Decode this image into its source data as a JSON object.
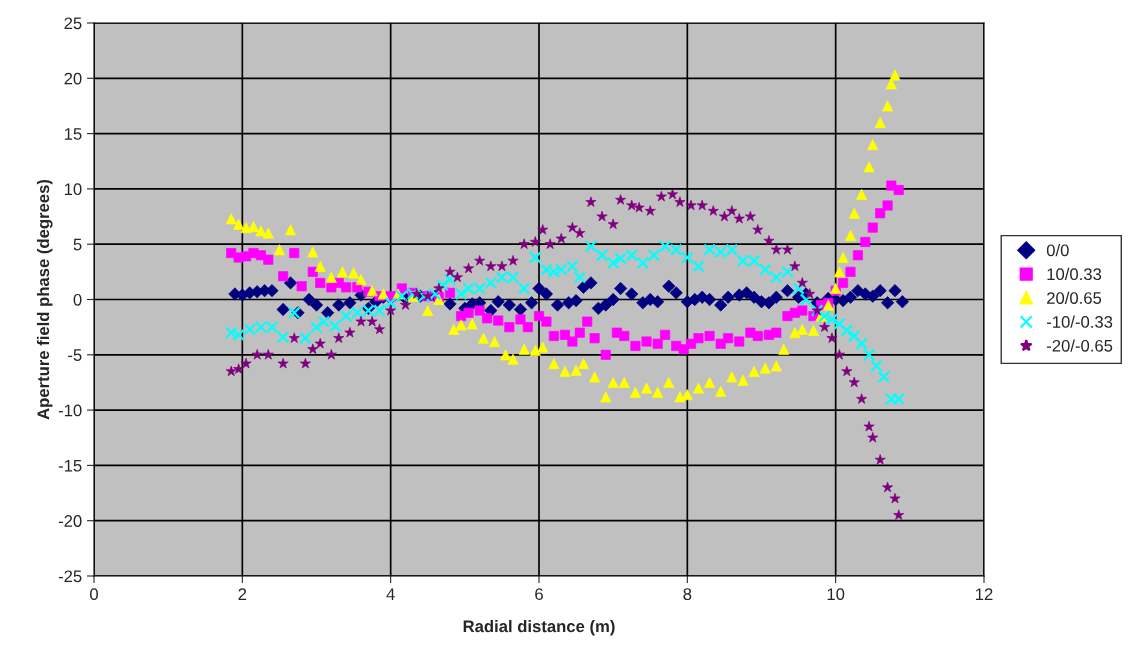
{
  "chart_data": {
    "type": "scatter",
    "xlabel": "Radial distance (m)",
    "ylabel": "Aperture field phase (degrees)",
    "xlim": [
      0,
      12
    ],
    "xticks": [
      0,
      2,
      4,
      6,
      8,
      10,
      12
    ],
    "ylim": [
      -25,
      25
    ],
    "yticks": [
      -25,
      -20,
      -15,
      -10,
      -5,
      0,
      5,
      10,
      15,
      20,
      25
    ],
    "grid": true,
    "legend": "right",
    "series": [
      {
        "name": "0/0",
        "color": "#000080",
        "marker": "diamond",
        "x": [
          1.9,
          2.0,
          2.1,
          2.2,
          2.3,
          2.4,
          2.55,
          2.65,
          2.75,
          2.9,
          3.0,
          3.15,
          3.3,
          3.45,
          3.6,
          3.7,
          3.8,
          3.9,
          4.0,
          4.2,
          4.4,
          4.6,
          4.8,
          5.0,
          5.1,
          5.2,
          5.35,
          5.45,
          5.6,
          5.75,
          5.9,
          6.0,
          6.1,
          6.25,
          6.4,
          6.5,
          6.6,
          6.7,
          6.8,
          6.9,
          7.0,
          7.1,
          7.25,
          7.4,
          7.5,
          7.6,
          7.75,
          7.85,
          8.0,
          8.1,
          8.2,
          8.3,
          8.45,
          8.55,
          8.7,
          8.8,
          8.9,
          9.0,
          9.1,
          9.2,
          9.35,
          9.5,
          9.6,
          9.75,
          9.9,
          10.0,
          10.1,
          10.2,
          10.3,
          10.4,
          10.5,
          10.6,
          10.7,
          10.8,
          10.9
        ],
        "values": [
          0.5,
          0.4,
          0.6,
          0.7,
          0.8,
          0.8,
          -0.9,
          1.5,
          -1.2,
          0,
          -0.5,
          -1.2,
          -0.5,
          -0.3,
          0.4,
          -0.8,
          -0.2,
          0.2,
          0.1,
          0.1,
          0.3,
          0.3,
          -0.4,
          -0.8,
          -0.4,
          -0.3,
          -1,
          -0.2,
          -0.5,
          -0.9,
          -0.3,
          1.0,
          0.5,
          -0.5,
          -0.3,
          -0.1,
          1.1,
          1.5,
          -0.8,
          -0.5,
          0,
          1.0,
          0.5,
          -0.3,
          0,
          -0.2,
          1.2,
          0.6,
          -0.2,
          0,
          0.2,
          0,
          -0.5,
          0.2,
          0.4,
          0.6,
          0.2,
          -0.2,
          -0.3,
          0.2,
          0.8,
          0.2,
          0.5,
          -0.3,
          0.1,
          0,
          -0.1,
          0.2,
          0.8,
          0.5,
          0.3,
          0.8,
          -0.3,
          0.8,
          -0.2
        ]
      },
      {
        "name": "10/0.33",
        "color": "#ff00ff",
        "marker": "square",
        "x": [
          1.85,
          1.95,
          2.05,
          2.15,
          2.25,
          2.35,
          2.55,
          2.7,
          2.8,
          2.95,
          3.05,
          3.2,
          3.3,
          3.4,
          3.55,
          3.7,
          3.85,
          4.0,
          4.15,
          4.3,
          4.5,
          4.65,
          4.8,
          4.95,
          5.05,
          5.2,
          5.3,
          5.45,
          5.6,
          5.75,
          5.85,
          6.0,
          6.1,
          6.2,
          6.35,
          6.45,
          6.55,
          6.65,
          6.75,
          6.9,
          7.05,
          7.15,
          7.3,
          7.45,
          7.6,
          7.7,
          7.85,
          7.95,
          8.05,
          8.15,
          8.3,
          8.45,
          8.55,
          8.7,
          8.85,
          8.95,
          9.1,
          9.2,
          9.35,
          9.45,
          9.55,
          9.7,
          9.8,
          9.9,
          10.0,
          10.1,
          10.2,
          10.3,
          10.4,
          10.5,
          10.6,
          10.7,
          10.75,
          10.85
        ],
        "values": [
          4.2,
          3.8,
          3.9,
          4.2,
          4.0,
          3.6,
          2.1,
          4.2,
          1.2,
          2.5,
          1.5,
          1.1,
          1.5,
          1.1,
          1.1,
          0.7,
          0.3,
          0.3,
          1.0,
          0.6,
          0.3,
          0.2,
          0.6,
          -1.5,
          -1.2,
          -1.0,
          -1.7,
          -1.9,
          -2.5,
          -1.8,
          -2.5,
          -1.5,
          -2.0,
          -3.3,
          -3.2,
          -3.8,
          -3.0,
          -2.0,
          -3.5,
          -5.0,
          -3.0,
          -3.3,
          -4.2,
          -3.8,
          -4.0,
          -3.2,
          -4.2,
          -4.5,
          -4.0,
          -3.5,
          -3.3,
          -4.0,
          -3.5,
          -3.8,
          -3.0,
          -3.3,
          -3.2,
          -3.0,
          -1.5,
          -1.2,
          -1.0,
          -1.5,
          -0.5,
          -0.3,
          0.8,
          1.5,
          2.5,
          4.0,
          5.2,
          6.5,
          7.8,
          8.5,
          10.3,
          9.9
        ]
      },
      {
        "name": "20/0.65",
        "color": "#ffff00",
        "marker": "triangle",
        "x": [
          1.85,
          1.95,
          2.05,
          2.15,
          2.25,
          2.35,
          2.5,
          2.65,
          2.95,
          3.05,
          3.2,
          3.35,
          3.5,
          3.6,
          3.75,
          3.9,
          4.1,
          4.3,
          4.5,
          4.65,
          4.85,
          4.95,
          5.1,
          5.25,
          5.4,
          5.55,
          5.65,
          5.8,
          5.95,
          6.05,
          6.2,
          6.35,
          6.5,
          6.6,
          6.75,
          6.9,
          7.0,
          7.15,
          7.3,
          7.45,
          7.6,
          7.75,
          7.9,
          8.0,
          8.15,
          8.3,
          8.45,
          8.6,
          8.75,
          8.9,
          9.05,
          9.2,
          9.3,
          9.45,
          9.55,
          9.7,
          9.8,
          9.9,
          10.0,
          10.05,
          10.1,
          10.2,
          10.25,
          10.35,
          10.45,
          10.5,
          10.6,
          10.7,
          10.75,
          10.8
        ],
        "values": [
          7.3,
          6.8,
          6.5,
          6.6,
          6.2,
          6.0,
          4.5,
          6.3,
          4.3,
          3.0,
          2.0,
          2.5,
          2.4,
          1.8,
          0.8,
          0.5,
          0.5,
          0.3,
          -1.0,
          0,
          -2.7,
          -2.3,
          -2.2,
          -3.5,
          -3.8,
          -5.0,
          -5.4,
          -4.5,
          -4.6,
          -4.3,
          -5.8,
          -6.5,
          -6.4,
          -5.8,
          -7.0,
          -8.8,
          -7.5,
          -7.5,
          -8.4,
          -8.0,
          -8.4,
          -7.5,
          -8.8,
          -8.6,
          -8.0,
          -7.5,
          -8.3,
          -7.0,
          -7.3,
          -6.5,
          -6.2,
          -6.0,
          -4.5,
          -3.0,
          -2.7,
          -2.8,
          -1.5,
          -0.5,
          1.0,
          2.5,
          3.8,
          5.8,
          7.8,
          9.5,
          12.0,
          14.0,
          16.0,
          17.5,
          19.5,
          20.3
        ]
      },
      {
        "name": "-10/-0.33",
        "color": "#00ffff",
        "marker": "cross",
        "x": [
          1.85,
          1.95,
          2.1,
          2.25,
          2.4,
          2.55,
          2.7,
          2.85,
          3.0,
          3.1,
          3.25,
          3.4,
          3.55,
          3.7,
          3.85,
          4.0,
          4.15,
          4.3,
          4.45,
          4.6,
          4.7,
          4.8,
          4.95,
          5.05,
          5.2,
          5.35,
          5.5,
          5.65,
          5.8,
          5.95,
          6.1,
          6.2,
          6.3,
          6.45,
          6.55,
          6.7,
          6.85,
          7.0,
          7.1,
          7.25,
          7.4,
          7.55,
          7.7,
          7.85,
          8.0,
          8.15,
          8.3,
          8.45,
          8.6,
          8.75,
          8.9,
          9.05,
          9.2,
          9.35,
          9.5,
          9.6,
          9.75,
          9.85,
          9.95,
          10.05,
          10.15,
          10.25,
          10.35,
          10.45,
          10.55,
          10.65,
          10.75,
          10.85
        ],
        "values": [
          -3.0,
          -3.2,
          -2.7,
          -2.5,
          -2.5,
          -3.4,
          -1.2,
          -3.5,
          -2.5,
          -2.0,
          -2.4,
          -1.5,
          -1.2,
          -1.0,
          -1.0,
          -0.3,
          0.3,
          0.5,
          0.3,
          0.5,
          1.3,
          1.8,
          0.5,
          1.0,
          1.0,
          1.5,
          2.0,
          2.0,
          1.0,
          3.8,
          2.7,
          2.5,
          2.7,
          3.0,
          2.0,
          4.8,
          4.0,
          3.3,
          3.7,
          4.0,
          3.3,
          4.0,
          4.8,
          4.5,
          3.8,
          3.0,
          4.5,
          4.3,
          4.5,
          3.5,
          3.5,
          2.7,
          2.0,
          2.5,
          1.0,
          0,
          -1.0,
          -1.5,
          -1.8,
          -2.2,
          -2.8,
          -3.3,
          -4.0,
          -5.0,
          -6.0,
          -7.0,
          -9.0,
          -9.0
        ]
      },
      {
        "name": "-20/-0.65",
        "color": "#800080",
        "marker": "star",
        "x": [
          1.85,
          1.95,
          2.05,
          2.2,
          2.35,
          2.55,
          2.7,
          2.85,
          2.95,
          3.05,
          3.2,
          3.3,
          3.45,
          3.6,
          3.75,
          3.85,
          4.0,
          4.2,
          4.35,
          4.5,
          4.65,
          4.8,
          4.9,
          5.05,
          5.2,
          5.35,
          5.5,
          5.65,
          5.8,
          5.95,
          6.05,
          6.15,
          6.3,
          6.45,
          6.55,
          6.7,
          6.85,
          7.0,
          7.1,
          7.25,
          7.35,
          7.5,
          7.65,
          7.8,
          7.9,
          8.05,
          8.2,
          8.35,
          8.5,
          8.6,
          8.7,
          8.85,
          8.95,
          9.1,
          9.2,
          9.35,
          9.45,
          9.55,
          9.65,
          9.75,
          9.85,
          9.95,
          10.05,
          10.15,
          10.25,
          10.35,
          10.45,
          10.5,
          10.6,
          10.7,
          10.8,
          10.85
        ],
        "values": [
          -6.5,
          -6.3,
          -5.8,
          -5.0,
          -5.0,
          -5.8,
          -3.5,
          -5.8,
          -4.5,
          -4.0,
          -5.0,
          -3.5,
          -3.0,
          -2.0,
          -2.0,
          -2.7,
          -1.0,
          -0.5,
          0.5,
          0.3,
          1.0,
          2.5,
          2.0,
          2.8,
          3.5,
          3.0,
          3.0,
          3.5,
          5.0,
          5.2,
          6.3,
          5.0,
          5.5,
          6.5,
          6.0,
          8.8,
          7.5,
          6.8,
          9.0,
          8.5,
          8.3,
          8.0,
          9.3,
          9.5,
          8.8,
          8.5,
          8.5,
          8.0,
          7.5,
          8.0,
          7.3,
          7.5,
          6.3,
          5.3,
          4.5,
          4.5,
          3.0,
          1.5,
          0.5,
          -1.0,
          -2.5,
          -3.5,
          -5.0,
          -6.5,
          -7.5,
          -9.0,
          -11.5,
          -12.5,
          -14.5,
          -17.0,
          -18.0,
          -19.5
        ]
      }
    ]
  }
}
